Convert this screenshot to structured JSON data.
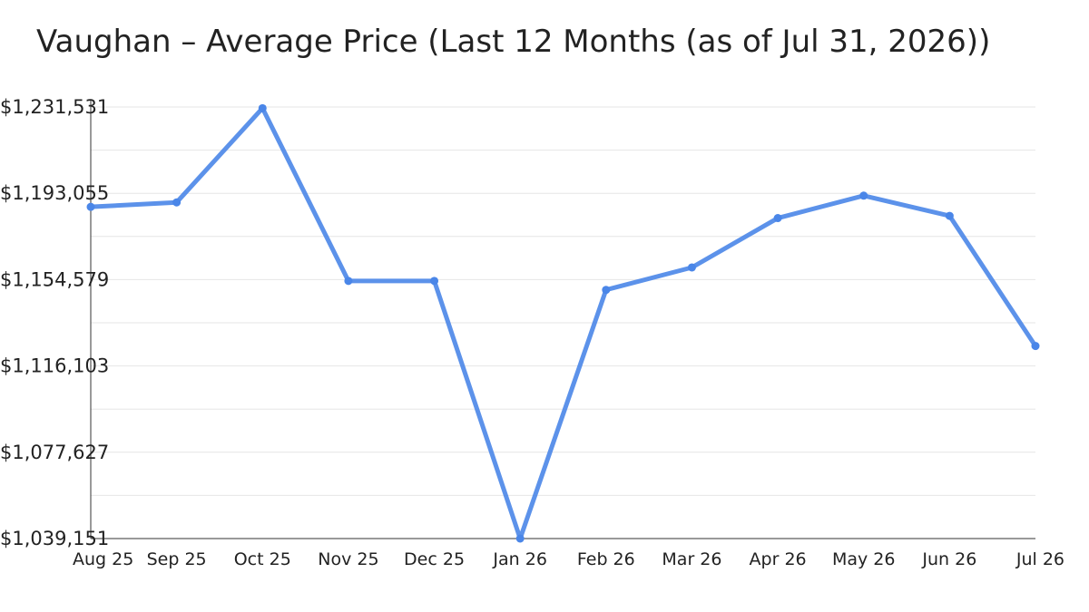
{
  "chart_data": {
    "type": "line",
    "title": "Vaughan – Average Price (Last 12 Months (as of Jul 31, 2026))",
    "xlabel": "",
    "ylabel": "",
    "categories": [
      "Aug 25",
      "Sep 25",
      "Oct 25",
      "Nov 25",
      "Dec 25",
      "Jan 26",
      "Feb 26",
      "Mar 26",
      "Apr 26",
      "May 26",
      "Jun 26",
      "Jul 26"
    ],
    "series": [
      {
        "values": [
          1187000,
          1189000,
          1231000,
          1154000,
          1154000,
          1039151,
          1150000,
          1160000,
          1182000,
          1192000,
          1183000,
          1125000
        ],
        "color": "#4a86e8"
      }
    ],
    "yticks": [
      "$1,039,151",
      "$1,077,627",
      "$1,116,103",
      "$1,154,579",
      "$1,193,055",
      "$1,231,531"
    ],
    "ylim": [
      1039151,
      1231531
    ],
    "grid": true,
    "legend": "none"
  }
}
